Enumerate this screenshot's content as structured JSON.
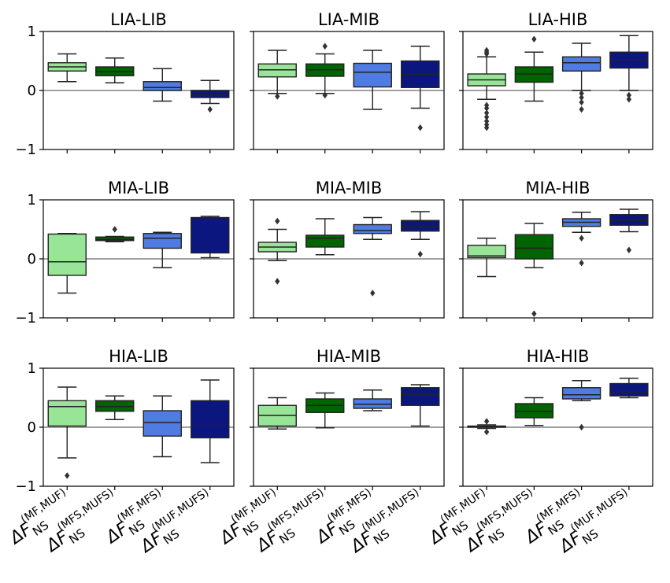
{
  "colors": {
    "MF_MUF": "#98e598",
    "MFS_MUFS": "#006400",
    "MF_MFS": "#4f7be3",
    "MUF_MUFS": "#0b167f",
    "zero_line": "#808080",
    "frame": "#000000"
  },
  "chart_data": {
    "type": "box",
    "ylim": [
      -1,
      1
    ],
    "yticks": [
      {
        "value": 1,
        "label": "1"
      },
      {
        "value": 0,
        "label": "0"
      },
      {
        "value": -1,
        "label": "−1"
      }
    ],
    "categories": [
      {
        "key": "MF_MUF",
        "sup": "(MF,MUF)"
      },
      {
        "key": "MFS_MUFS",
        "sup": "(MFS,MUFS)"
      },
      {
        "key": "MF_MFS",
        "sup": "(MF,MFS)"
      },
      {
        "key": "MUF_MUFS",
        "sup": "(MUF,MUFS)"
      }
    ],
    "category_label_base": "ΔF",
    "category_label_sub": "NS",
    "panels": [
      {
        "title": "LIA-LIB",
        "boxes": [
          {
            "low": 0.15,
            "q1": 0.33,
            "median": 0.4,
            "q3": 0.47,
            "high": 0.62,
            "outliers": []
          },
          {
            "low": 0.13,
            "q1": 0.25,
            "median": 0.32,
            "q3": 0.4,
            "high": 0.55,
            "outliers": []
          },
          {
            "low": -0.18,
            "q1": 0.0,
            "median": 0.05,
            "q3": 0.15,
            "high": 0.37,
            "outliers": []
          },
          {
            "low": -0.22,
            "q1": -0.12,
            "median": -0.08,
            "q3": 0.0,
            "high": 0.17,
            "outliers": [
              -0.32
            ]
          }
        ]
      },
      {
        "title": "LIA-MIB",
        "boxes": [
          {
            "low": -0.05,
            "q1": 0.23,
            "median": 0.35,
            "q3": 0.45,
            "high": 0.68,
            "outliers": [
              -0.1
            ]
          },
          {
            "low": -0.05,
            "q1": 0.24,
            "median": 0.35,
            "q3": 0.45,
            "high": 0.62,
            "outliers": [
              0.75,
              -0.08
            ]
          },
          {
            "low": -0.32,
            "q1": 0.06,
            "median": 0.31,
            "q3": 0.46,
            "high": 0.68,
            "outliers": []
          },
          {
            "low": -0.3,
            "q1": 0.05,
            "median": 0.27,
            "q3": 0.5,
            "high": 0.75,
            "outliers": [
              -0.63
            ]
          }
        ]
      },
      {
        "title": "LIA-HIB",
        "boxes": [
          {
            "low": -0.15,
            "q1": 0.08,
            "median": 0.18,
            "q3": 0.28,
            "high": 0.57,
            "outliers": [
              0.62,
              0.65,
              0.68,
              -0.25,
              -0.3,
              -0.38,
              -0.45,
              -0.52,
              -0.58,
              -0.63
            ]
          },
          {
            "low": -0.18,
            "q1": 0.14,
            "median": 0.28,
            "q3": 0.4,
            "high": 0.65,
            "outliers": [
              0.87
            ]
          },
          {
            "low": 0.0,
            "q1": 0.33,
            "median": 0.47,
            "q3": 0.57,
            "high": 0.8,
            "outliers": [
              -0.05,
              -0.12,
              -0.2,
              -0.32
            ]
          },
          {
            "low": 0.0,
            "q1": 0.38,
            "median": 0.52,
            "q3": 0.65,
            "high": 0.93,
            "outliers": [
              -0.08,
              -0.15
            ]
          }
        ]
      },
      {
        "title": "MIA-LIB",
        "boxes": [
          {
            "low": -0.58,
            "q1": -0.28,
            "median": -0.05,
            "q3": 0.42,
            "high": 0.43,
            "outliers": []
          },
          {
            "low": 0.29,
            "q1": 0.31,
            "median": 0.33,
            "q3": 0.37,
            "high": 0.38,
            "outliers": [
              0.5
            ]
          },
          {
            "low": -0.15,
            "q1": 0.18,
            "median": 0.35,
            "q3": 0.43,
            "high": 0.45,
            "outliers": []
          },
          {
            "low": 0.02,
            "q1": 0.1,
            "median": 0.67,
            "q3": 0.7,
            "high": 0.72,
            "outliers": []
          }
        ]
      },
      {
        "title": "MIA-MIB",
        "boxes": [
          {
            "low": -0.03,
            "q1": 0.12,
            "median": 0.2,
            "q3": 0.28,
            "high": 0.5,
            "outliers": [
              0.64,
              -0.38
            ]
          },
          {
            "low": 0.07,
            "q1": 0.2,
            "median": 0.35,
            "q3": 0.4,
            "high": 0.68,
            "outliers": []
          },
          {
            "low": 0.33,
            "q1": 0.43,
            "median": 0.48,
            "q3": 0.58,
            "high": 0.7,
            "outliers": [
              -0.58
            ]
          },
          {
            "low": 0.33,
            "q1": 0.47,
            "median": 0.55,
            "q3": 0.65,
            "high": 0.8,
            "outliers": [
              0.08
            ]
          }
        ]
      },
      {
        "title": "MIA-HIB",
        "boxes": [
          {
            "low": -0.3,
            "q1": 0.02,
            "median": 0.05,
            "q3": 0.23,
            "high": 0.35,
            "outliers": []
          },
          {
            "low": -0.15,
            "q1": 0.0,
            "median": 0.18,
            "q3": 0.41,
            "high": 0.6,
            "outliers": [
              -0.93
            ]
          },
          {
            "low": 0.45,
            "q1": 0.55,
            "median": 0.62,
            "q3": 0.68,
            "high": 0.79,
            "outliers": [
              0.35,
              -0.07
            ]
          },
          {
            "low": 0.46,
            "q1": 0.57,
            "median": 0.65,
            "q3": 0.75,
            "high": 0.84,
            "outliers": [
              0.15
            ]
          }
        ]
      },
      {
        "title": "HIA-LIB",
        "boxes": [
          {
            "low": -0.52,
            "q1": 0.02,
            "median": 0.35,
            "q3": 0.45,
            "high": 0.68,
            "outliers": [
              -0.82
            ]
          },
          {
            "low": 0.13,
            "q1": 0.27,
            "median": 0.35,
            "q3": 0.45,
            "high": 0.53,
            "outliers": []
          },
          {
            "low": -0.5,
            "q1": -0.15,
            "median": 0.08,
            "q3": 0.28,
            "high": 0.53,
            "outliers": []
          },
          {
            "low": -0.6,
            "q1": -0.18,
            "median": 0.03,
            "q3": 0.45,
            "high": 0.8,
            "outliers": []
          }
        ]
      },
      {
        "title": "HIA-MIB",
        "boxes": [
          {
            "low": -0.03,
            "q1": 0.02,
            "median": 0.2,
            "q3": 0.37,
            "high": 0.5,
            "outliers": []
          },
          {
            "low": -0.01,
            "q1": 0.25,
            "median": 0.37,
            "q3": 0.48,
            "high": 0.58,
            "outliers": []
          },
          {
            "low": 0.28,
            "q1": 0.32,
            "median": 0.39,
            "q3": 0.48,
            "high": 0.63,
            "outliers": []
          },
          {
            "low": 0.02,
            "q1": 0.37,
            "median": 0.55,
            "q3": 0.67,
            "high": 0.72,
            "outliers": []
          }
        ]
      },
      {
        "title": "HIA-HIB",
        "boxes": [
          {
            "low": -0.02,
            "q1": 0.0,
            "median": 0.01,
            "q3": 0.02,
            "high": 0.04,
            "outliers": [
              0.1,
              -0.08
            ]
          },
          {
            "low": 0.03,
            "q1": 0.16,
            "median": 0.27,
            "q3": 0.4,
            "high": 0.5,
            "outliers": []
          },
          {
            "low": 0.45,
            "q1": 0.48,
            "median": 0.55,
            "q3": 0.67,
            "high": 0.79,
            "outliers": [
              0.0
            ]
          },
          {
            "low": 0.5,
            "q1": 0.53,
            "median": 0.6,
            "q3": 0.74,
            "high": 0.83,
            "outliers": []
          }
        ]
      }
    ]
  }
}
